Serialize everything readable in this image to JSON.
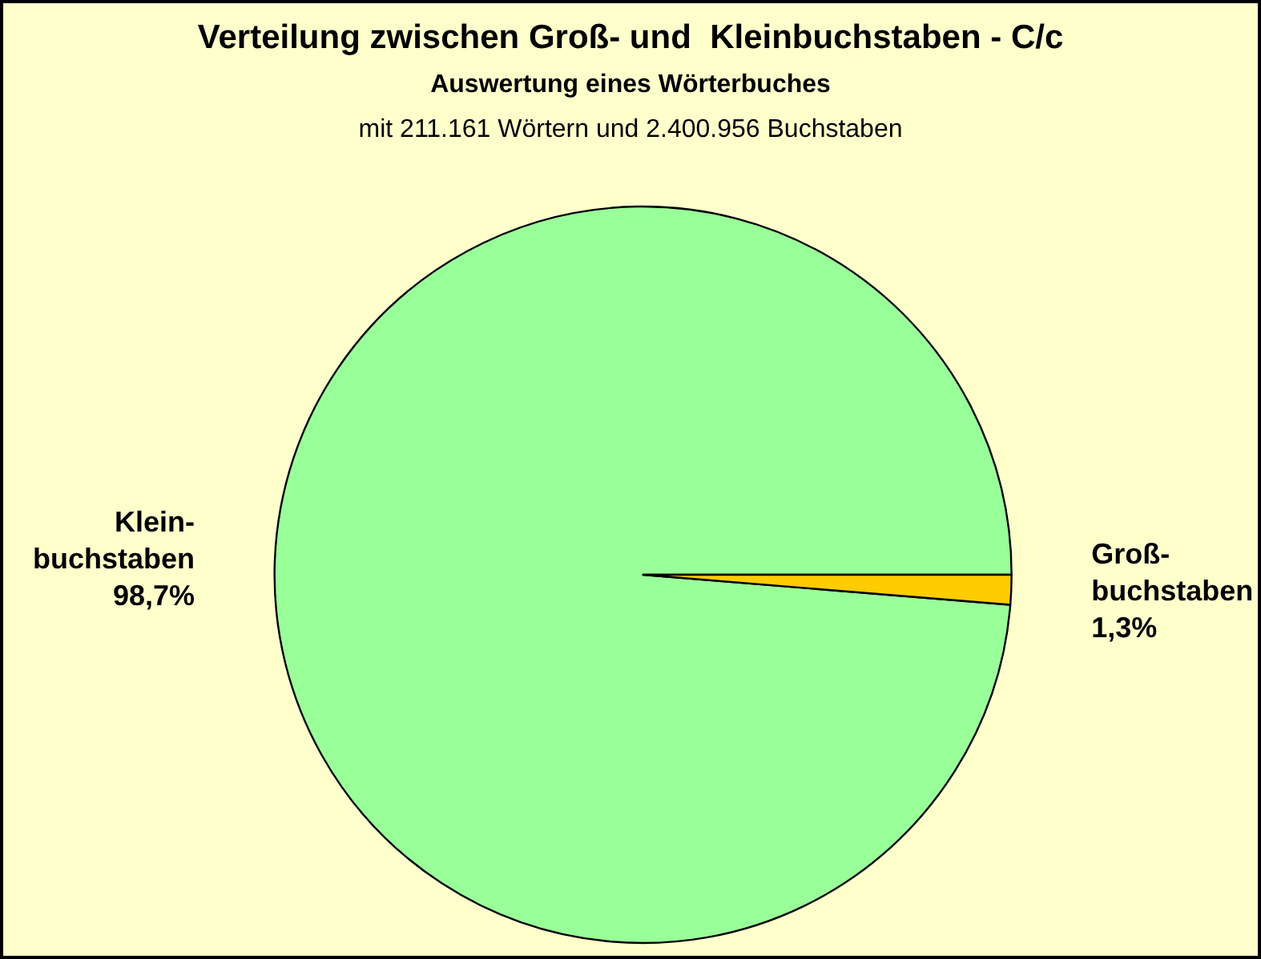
{
  "chart_data": {
    "type": "pie",
    "title": "Verteilung zwischen Groß- und  Kleinbuchstaben - C/c",
    "subtitle": "Auswertung eines Wörterbuches",
    "annotations": [
      "mit 211.161 Wörtern und 2.400.956 Buchstaben"
    ],
    "categories": [
      "Klein-\nbuchstaben",
      "Groß-\nbuchstaben"
    ],
    "values": [
      98.7,
      1.3
    ],
    "value_labels": [
      "98,7%",
      "1,3%"
    ],
    "colors": [
      "#99ff99",
      "#ffcc00"
    ],
    "legend": false
  }
}
